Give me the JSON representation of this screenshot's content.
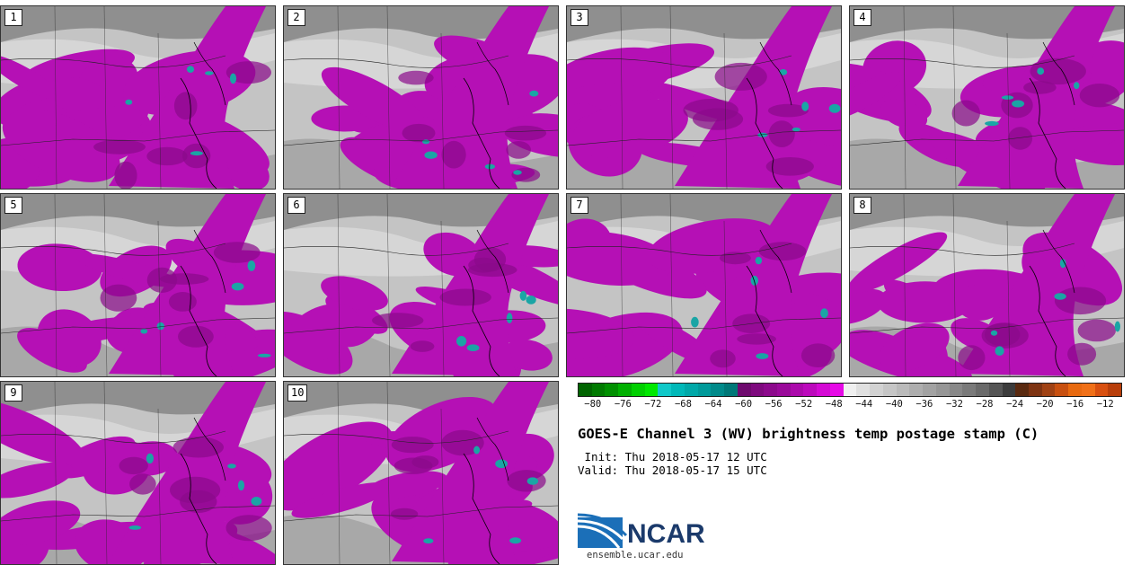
{
  "panels": [
    {
      "label": "1"
    },
    {
      "label": "2"
    },
    {
      "label": "3"
    },
    {
      "label": "4"
    },
    {
      "label": "5"
    },
    {
      "label": "6"
    },
    {
      "label": "7"
    },
    {
      "label": "8"
    },
    {
      "label": "9"
    },
    {
      "label": "10"
    }
  ],
  "colorbar": {
    "colors": [
      "#006400",
      "#007a00",
      "#009000",
      "#00b000",
      "#00d000",
      "#00e800",
      "#10c8c8",
      "#00b8b8",
      "#00a8a8",
      "#009a9a",
      "#008a8a",
      "#007878",
      "#6e0a6e",
      "#7e0a7e",
      "#8c0a8c",
      "#9a0a9a",
      "#ab0aab",
      "#bc0abc",
      "#d40ad4",
      "#e60ae6",
      "#f0f0f0",
      "#e0e0e0",
      "#d2d2d2",
      "#c6c6c6",
      "#bababa",
      "#aeaeae",
      "#a2a2a2",
      "#969696",
      "#888888",
      "#7a7a7a",
      "#6a6a6a",
      "#555555",
      "#3c3c3c",
      "#5a2a10",
      "#7e3412",
      "#a04214",
      "#c85010",
      "#e86a10",
      "#f07018",
      "#d85010",
      "#b83e0a"
    ],
    "ticks": [
      "−80",
      "−76",
      "−72",
      "−68",
      "−64",
      "−60",
      "−56",
      "−52",
      "−48",
      "−44",
      "−40",
      "−36",
      "−32",
      "−28",
      "−24",
      "−20",
      "−16",
      "−12"
    ],
    "min": -82,
    "max": -10
  },
  "title": "GOES-E Channel 3 (WV) brightness temp postage stamp (C)",
  "init": " Init: Thu 2018-05-17 12 UTC",
  "valid": "Valid: Thu 2018-05-17 15 UTC",
  "logo": {
    "text": "NCAR",
    "site": "ensemble.ucar.edu"
  },
  "colors": {
    "magenta": "#b510b5",
    "magenta_dark": "#8a0a8a",
    "gray_dark": "#8f8f8f",
    "gray_light": "#d9d9d9",
    "teal": "#1aa5a5"
  }
}
